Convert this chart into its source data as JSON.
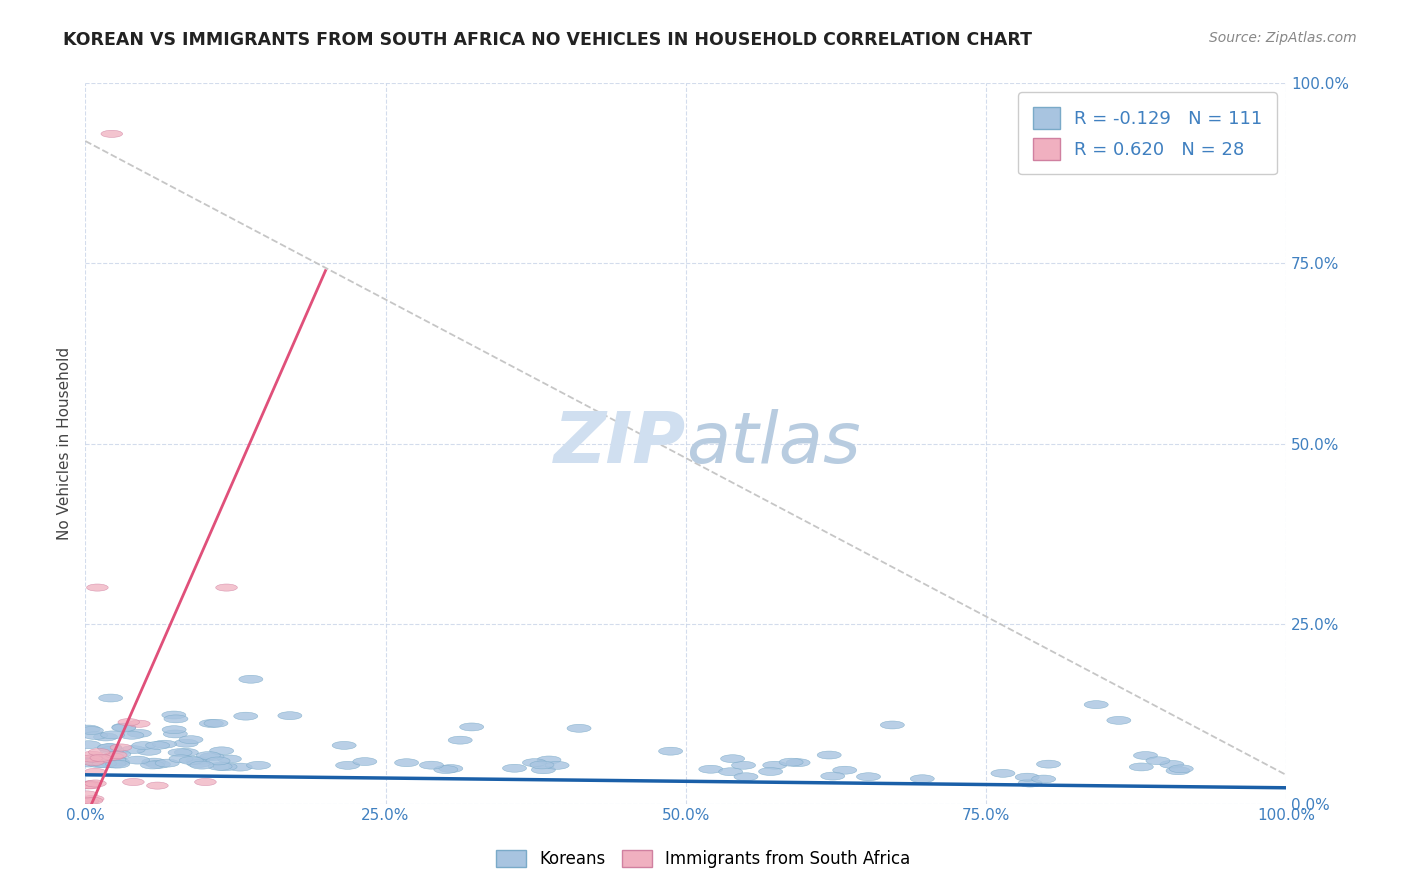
{
  "title": "KOREAN VS IMMIGRANTS FROM SOUTH AFRICA NO VEHICLES IN HOUSEHOLD CORRELATION CHART",
  "source": "Source: ZipAtlas.com",
  "ylabel": "No Vehicles in Household",
  "xlim": [
    0,
    1
  ],
  "ylim": [
    0,
    1
  ],
  "xticks": [
    0.0,
    0.25,
    0.5,
    0.75,
    1.0
  ],
  "yticks": [
    0.0,
    0.25,
    0.5,
    0.75,
    1.0
  ],
  "xticklabels": [
    "0.0%",
    "25.0%",
    "50.0%",
    "75.0%",
    "100.0%"
  ],
  "yticklabels": [
    "0.0%",
    "25.0%",
    "50.0%",
    "75.0%",
    "100.0%"
  ],
  "blue_R": -0.129,
  "blue_N": 111,
  "pink_R": 0.62,
  "pink_N": 28,
  "blue_color": "#a8c4e0",
  "blue_edge_color": "#7aaac8",
  "blue_line_color": "#1a5fa8",
  "pink_color": "#f0b0c0",
  "pink_edge_color": "#d080a0",
  "pink_line_color": "#e0507a",
  "gray_line_color": "#c0c0c0",
  "watermark_color": "#d0dff0",
  "legend_label_blue": "Koreans",
  "legend_label_pink": "Immigrants from South Africa",
  "tick_color": "#4080c0",
  "title_color": "#222222",
  "ylabel_color": "#444444",
  "source_color": "#888888",
  "grid_color": "#c8d4e8",
  "bg_color": "#ffffff"
}
